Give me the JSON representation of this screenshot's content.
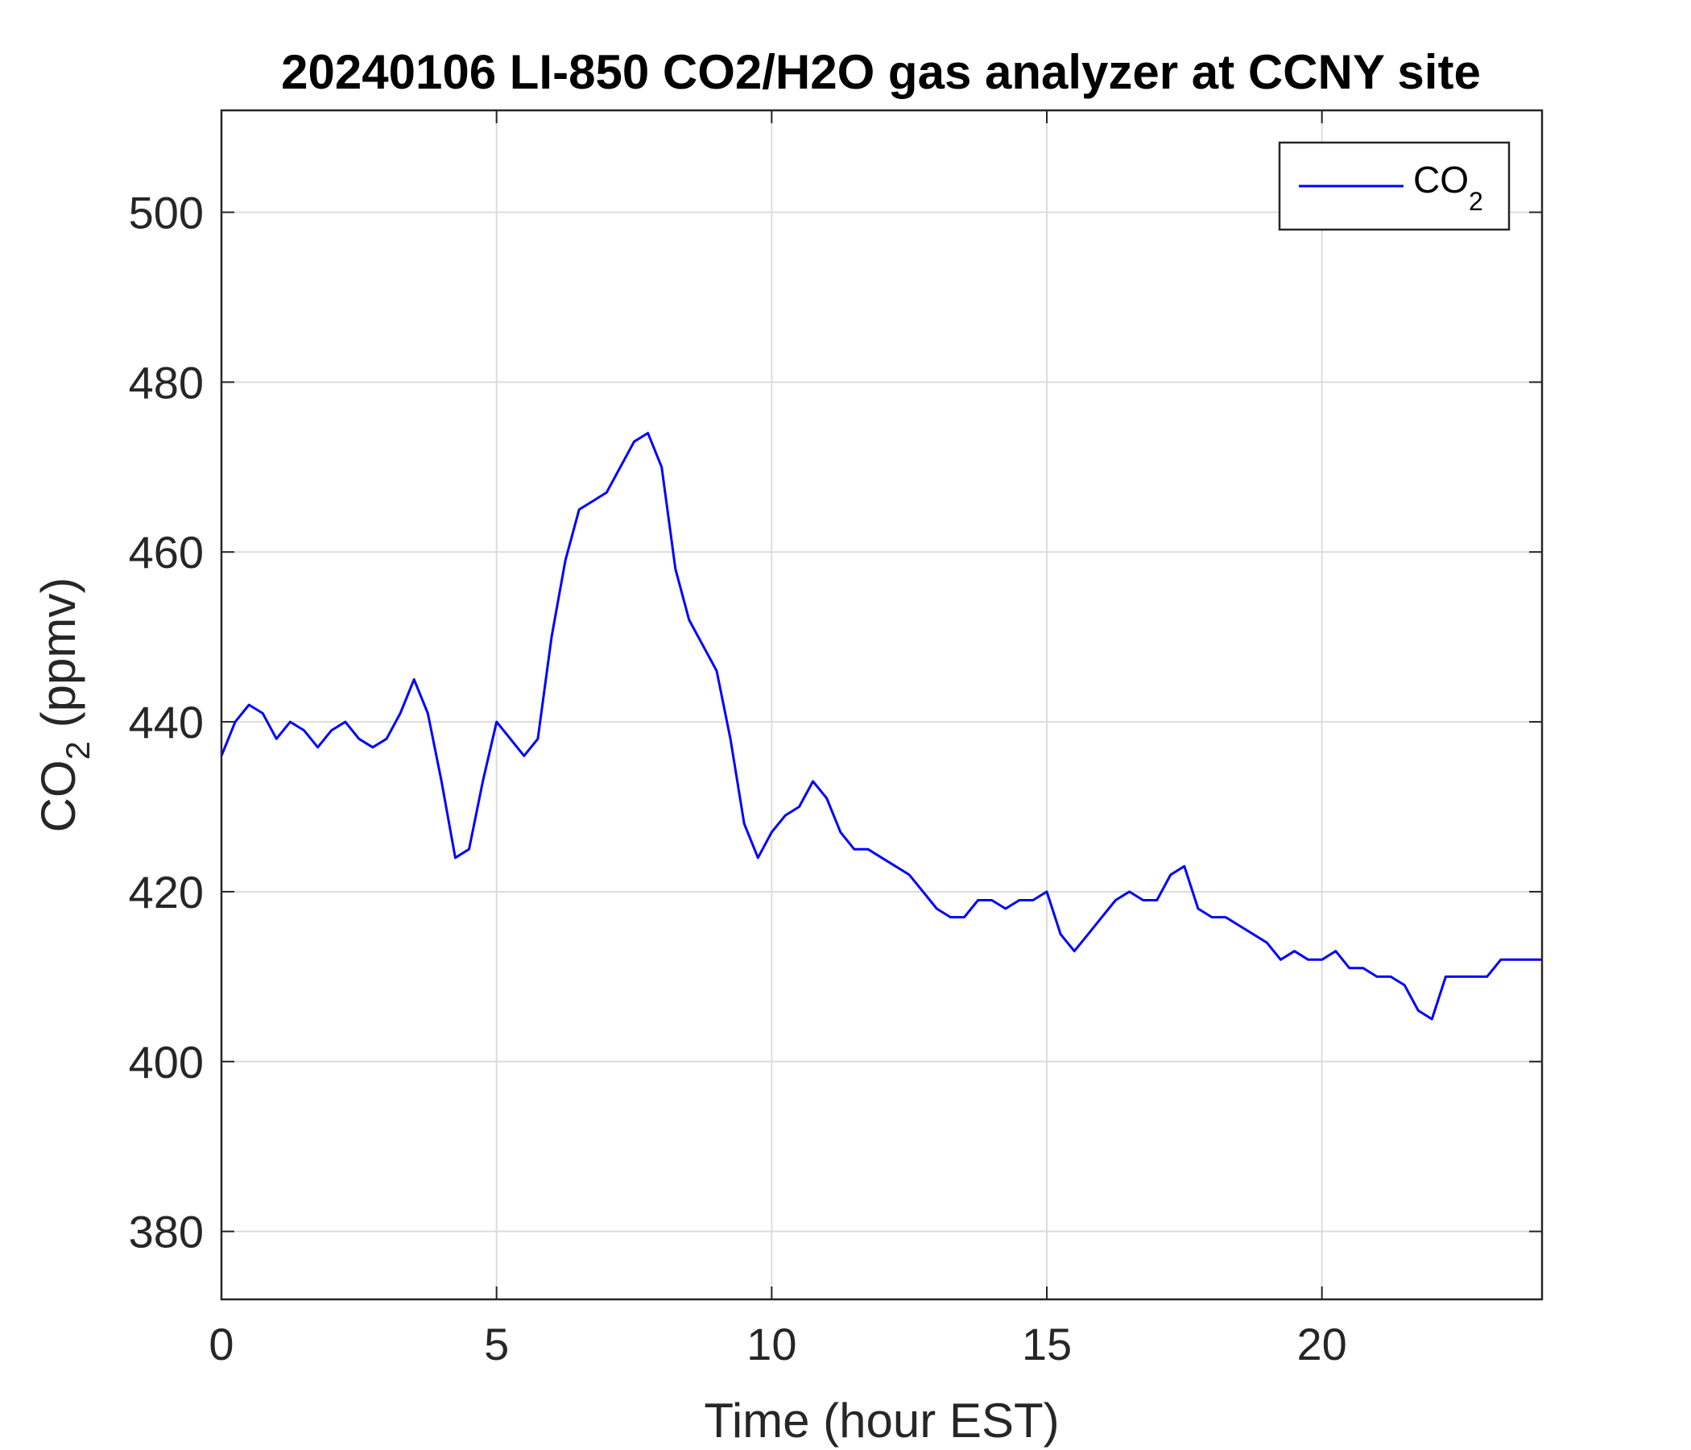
{
  "chart_data": {
    "type": "line",
    "title": "20240106 LI-850 CO2/H2O gas analyzer at CCNY site",
    "xlabel": "Time (hour EST)",
    "ylabel": {
      "base": "CO",
      "sub": "2",
      "rest": " (ppmv)"
    },
    "xlim": [
      0,
      24
    ],
    "ylim": [
      372,
      512
    ],
    "xticks": [
      0,
      5,
      10,
      15,
      20
    ],
    "yticks": [
      380,
      400,
      420,
      440,
      460,
      480,
      500
    ],
    "grid": true,
    "legend": {
      "position": "top-right",
      "entries": [
        {
          "base": "CO",
          "sub": "2"
        }
      ]
    },
    "series": [
      {
        "name": "CO2",
        "color": "#0000ff",
        "x": [
          0.0,
          0.25,
          0.5,
          0.75,
          1.0,
          1.25,
          1.5,
          1.75,
          2.0,
          2.25,
          2.5,
          2.75,
          3.0,
          3.25,
          3.5,
          3.75,
          4.0,
          4.25,
          4.5,
          4.75,
          5.0,
          5.25,
          5.5,
          5.75,
          6.0,
          6.25,
          6.5,
          6.75,
          7.0,
          7.25,
          7.5,
          7.75,
          8.0,
          8.25,
          8.5,
          8.75,
          9.0,
          9.25,
          9.5,
          9.75,
          10.0,
          10.25,
          10.5,
          10.75,
          11.0,
          11.25,
          11.5,
          11.75,
          12.0,
          12.25,
          12.5,
          12.75,
          13.0,
          13.25,
          13.5,
          13.75,
          14.0,
          14.25,
          14.5,
          14.75,
          15.0,
          15.25,
          15.5,
          15.75,
          16.0,
          16.25,
          16.5,
          16.75,
          17.0,
          17.25,
          17.5,
          17.75,
          18.0,
          18.25,
          18.5,
          18.75,
          19.0,
          19.25,
          19.5,
          19.75,
          20.0,
          20.25,
          20.5,
          20.75,
          21.0,
          21.25,
          21.5,
          21.75,
          22.0,
          22.25,
          22.5,
          22.75,
          23.0,
          23.25,
          23.5,
          23.75,
          24.0
        ],
        "values": [
          436,
          440,
          442,
          441,
          438,
          440,
          439,
          437,
          439,
          440,
          438,
          437,
          438,
          441,
          445,
          441,
          433,
          424,
          425,
          433,
          440,
          438,
          436,
          438,
          450,
          459,
          465,
          466,
          467,
          470,
          473,
          474,
          470,
          458,
          452,
          449,
          446,
          438,
          428,
          424,
          427,
          429,
          430,
          433,
          431,
          427,
          425,
          425,
          424,
          423,
          422,
          420,
          418,
          417,
          417,
          419,
          419,
          418,
          419,
          419,
          420,
          415,
          413,
          415,
          417,
          419,
          420,
          419,
          419,
          422,
          423,
          418,
          417,
          417,
          416,
          415,
          414,
          412,
          413,
          412,
          412,
          413,
          411,
          411,
          410,
          410,
          409,
          406,
          405,
          410,
          410,
          410,
          410,
          412,
          412,
          412,
          412
        ]
      }
    ]
  }
}
